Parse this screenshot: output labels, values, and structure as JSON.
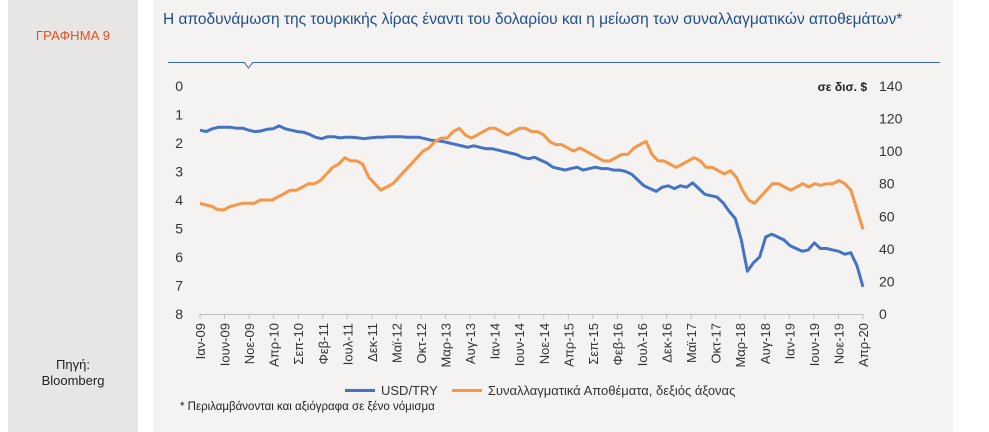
{
  "sidebar": {
    "chart_number": "ΓΡΑΦΗΜΑ 9",
    "source_label": "Πηγή:",
    "source_name": "Bloomberg"
  },
  "colors": {
    "title": "#1f4e8c",
    "label": "#e84d1c",
    "usd_try": "#4472c4",
    "reserves": "#f79646"
  },
  "chart_data": {
    "type": "line",
    "title": "Η αποδυνάμωση της τουρκικής λίρας έναντι του δολαρίου και η μείωση των συναλλαγματικών αποθεμάτων*",
    "footnote": "* Περιλαμβάνονται και αξιόγραφα σε ξένο νόμισμα",
    "right_axis_title": "σε δισ. $",
    "left_axis": {
      "range": [
        0,
        8
      ],
      "inverted": true,
      "ticks": [
        "0",
        "1",
        "2",
        "3",
        "4",
        "5",
        "6",
        "7",
        "8"
      ]
    },
    "right_axis": {
      "range": [
        0,
        140
      ],
      "ticks": [
        "0",
        "20",
        "40",
        "60",
        "80",
        "100",
        "120",
        "140"
      ]
    },
    "x_labels": [
      "Ιαν-09",
      "Ιουν-09",
      "Νοε-09",
      "Απρ-10",
      "Σεπ-10",
      "Φεβ-11",
      "Ιουλ-11",
      "Δεκ-11",
      "Μαϊ-12",
      "Οκτ-12",
      "Μαρ-13",
      "Αυγ-13",
      "Ιαν-14",
      "Ιουν-14",
      "Νοε-14",
      "Απρ-15",
      "Σεπ-15",
      "Φεβ-16",
      "Ιουλ-16",
      "Δεκ-16",
      "Μαϊ-17",
      "Οκτ-17",
      "Μαρ-18",
      "Αυγ-18",
      "Ιαν-19",
      "Ιουν-19",
      "Νοε-19",
      "Απρ-20"
    ],
    "series": [
      {
        "name": "USD/TRY",
        "axis": "left",
        "values": [
          1.55,
          1.6,
          1.5,
          1.45,
          1.45,
          1.45,
          1.48,
          1.48,
          1.55,
          1.6,
          1.58,
          1.52,
          1.5,
          1.4,
          1.5,
          1.55,
          1.6,
          1.62,
          1.7,
          1.8,
          1.85,
          1.78,
          1.78,
          1.82,
          1.8,
          1.8,
          1.82,
          1.85,
          1.82,
          1.8,
          1.8,
          1.78,
          1.78,
          1.78,
          1.8,
          1.8,
          1.8,
          1.85,
          1.9,
          1.92,
          1.95,
          2.0,
          2.05,
          2.1,
          2.15,
          2.1,
          2.15,
          2.2,
          2.2,
          2.25,
          2.3,
          2.35,
          2.4,
          2.5,
          2.55,
          2.5,
          2.6,
          2.7,
          2.85,
          2.9,
          2.95,
          2.9,
          2.85,
          2.95,
          2.9,
          2.85,
          2.9,
          2.9,
          2.95,
          2.95,
          3.0,
          3.1,
          3.3,
          3.5,
          3.6,
          3.7,
          3.55,
          3.5,
          3.6,
          3.5,
          3.55,
          3.4,
          3.6,
          3.8,
          3.85,
          3.9,
          4.1,
          4.4,
          4.65,
          5.4,
          6.5,
          6.2,
          6.0,
          5.3,
          5.2,
          5.3,
          5.4,
          5.6,
          5.7,
          5.8,
          5.75,
          5.5,
          5.7,
          5.7,
          5.75,
          5.8,
          5.9,
          5.85,
          6.3,
          7.05
        ],
        "color": "#4472c4"
      },
      {
        "name": "Συναλλαγματικά Αποθέματα, δεξιός άξονας",
        "axis": "right",
        "values": [
          68,
          67,
          66,
          64,
          64,
          66,
          67,
          68,
          68,
          68,
          70,
          70,
          70,
          72,
          74,
          76,
          76,
          78,
          80,
          80,
          82,
          86,
          90,
          92,
          96,
          94,
          94,
          92,
          84,
          80,
          76,
          78,
          80,
          84,
          88,
          92,
          96,
          100,
          102,
          106,
          108,
          108,
          112,
          114,
          110,
          108,
          110,
          112,
          114,
          114,
          112,
          110,
          112,
          114,
          114,
          112,
          112,
          110,
          106,
          104,
          104,
          102,
          100,
          102,
          100,
          98,
          96,
          94,
          94,
          96,
          98,
          98,
          102,
          104,
          106,
          98,
          94,
          94,
          92,
          90,
          92,
          94,
          96,
          94,
          90,
          90,
          88,
          86,
          88,
          84,
          76,
          70,
          68,
          72,
          76,
          80,
          80,
          78,
          76,
          78,
          80,
          78,
          80,
          79,
          80,
          80,
          82,
          80,
          76,
          64,
          52
        ],
        "color": "#f79646"
      }
    ]
  }
}
